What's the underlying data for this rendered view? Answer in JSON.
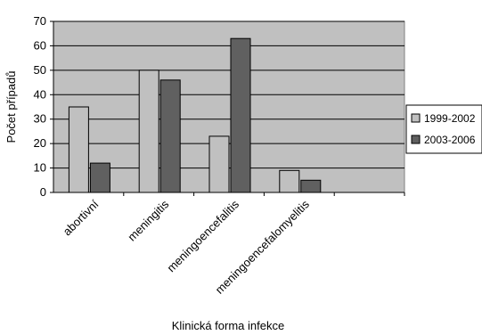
{
  "chart_data": {
    "type": "bar",
    "categories": [
      "abortivní",
      "meningitis",
      "meningoencefalitis",
      "meningoencefalomyelitis",
      ""
    ],
    "series": [
      {
        "name": "1999-2002",
        "values": [
          35,
          50,
          23,
          9,
          null
        ],
        "color": "#c0c0c0"
      },
      {
        "name": "2003-2006",
        "values": [
          12,
          46,
          63,
          5,
          null
        ],
        "color": "#606060"
      }
    ],
    "title": "",
    "xlabel": "Klinická forma infekce",
    "ylabel": "Počet případů",
    "ylim": [
      0,
      70
    ],
    "yticks": [
      0,
      10,
      20,
      30,
      40,
      50,
      60,
      70
    ],
    "grid": true,
    "legend": "right",
    "plot_background": "#c0c0c0"
  }
}
